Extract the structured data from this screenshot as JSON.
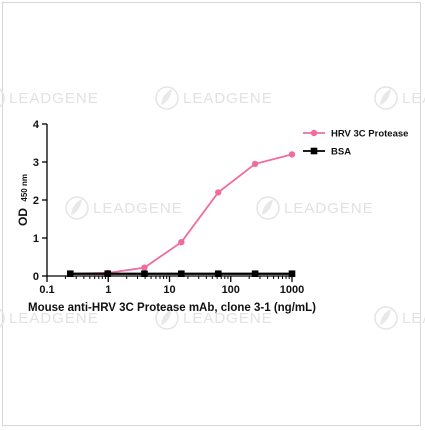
{
  "watermark": {
    "text": "LEADGENE"
  },
  "chart_data": {
    "type": "line",
    "title": "",
    "xlabel": "Mouse anti-HRV 3C Protease mAb, clone 3-1 (ng/mL)",
    "ylabel": "OD",
    "ylabel_subscript": "450 nm",
    "xscale": "log",
    "xlim": [
      0.1,
      1000
    ],
    "ylim": [
      0,
      4
    ],
    "xticks": [
      "0.1",
      "1",
      "10",
      "100",
      "1000"
    ],
    "yticks": [
      "0",
      "1",
      "2",
      "3",
      "4"
    ],
    "grid": false,
    "legend_position": "top-right",
    "series": [
      {
        "name": "HRV 3C Protease",
        "color": "#f06ca0",
        "marker": "circle",
        "x": [
          0.24,
          0.98,
          3.9,
          15.6,
          62.5,
          250,
          1000
        ],
        "y": [
          0.06,
          0.08,
          0.22,
          0.89,
          2.2,
          2.95,
          3.2
        ]
      },
      {
        "name": "BSA",
        "color": "#000000",
        "marker": "square",
        "x": [
          0.24,
          0.98,
          3.9,
          15.6,
          62.5,
          250,
          1000
        ],
        "y": [
          0.06,
          0.06,
          0.06,
          0.06,
          0.06,
          0.06,
          0.06
        ]
      }
    ]
  }
}
